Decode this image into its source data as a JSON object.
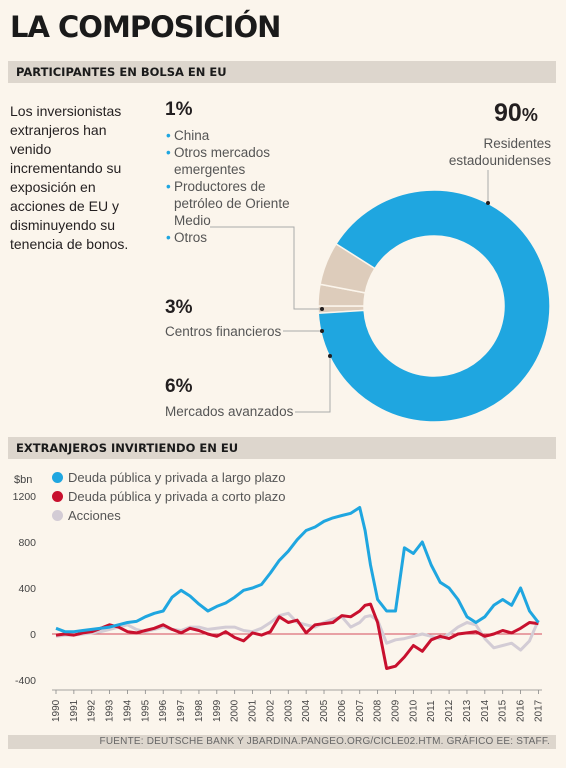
{
  "title": "LA COMPOSICIÓN",
  "section1": "PARTICIPANTES EN BOLSA EN EU",
  "section2": "EXTRANJEROS INVIRTIENDO EN EU",
  "intro": "Los inversionistas extranjeros han venido incrementando su exposición en acciones de EU y disminuyendo su tenencia de bonos.",
  "donut": {
    "p1": "1%",
    "p1_items": [
      "China",
      "Otros mercados emergentes",
      "Productores de petróleo de Oriente Medio",
      "Otros"
    ],
    "p90": "90",
    "p90_sign": "%",
    "p90_label": "Residentes estadounidenses",
    "p3": "3%",
    "p3_label": "Centros financieros",
    "p6": "6%",
    "p6_label": "Mercados avanzados"
  },
  "legend": {
    "unit": "$bn",
    "series": [
      "Deuda pública y privada a largo plazo",
      "Deuda pública y privada a corto plazo",
      "Acciones"
    ]
  },
  "colors": {
    "blue": "#1fa6e0",
    "red": "#c8102e",
    "grey": "#d3ccd5",
    "tan": "#ddccbb"
  },
  "footer": "FUENTE: DEUTSCHE BANK Y JBARDINA.PANGEO.ORG/CICLE02.HTM. GRÁFICO EE: STAFF.",
  "chart_data": [
    {
      "type": "pie",
      "labels": [
        "Residentes estadounidenses",
        "Mercados avanzados",
        "Centros financieros",
        "China / Otros mercados emergentes / Productores de petróleo de Oriente Medio / Otros"
      ],
      "values": [
        90,
        6,
        3,
        1
      ]
    },
    {
      "type": "line",
      "ylabel": "$bn",
      "ylim": [
        -400,
        1200
      ],
      "yticks": [
        1200,
        800,
        400,
        0,
        -400
      ],
      "xticks": [
        "1990",
        "1991",
        "1992",
        "1993",
        "1994",
        "1995",
        "1996",
        "1997",
        "1998",
        "1999",
        "2000",
        "2001",
        "2002",
        "2003",
        "2004",
        "2005",
        "2006",
        "2007",
        "2008",
        "2009",
        "2010",
        "2011",
        "2012",
        "2013",
        "2014",
        "2015",
        "2016",
        "2017"
      ],
      "x": [
        1990,
        1990.5,
        1991,
        1991.5,
        1992,
        1992.5,
        1993,
        1993.5,
        1994,
        1994.5,
        1995,
        1995.5,
        1996,
        1996.5,
        1997,
        1997.5,
        1998,
        1998.5,
        1999,
        1999.5,
        2000,
        2000.5,
        2001,
        2001.5,
        2002,
        2002.5,
        2003,
        2003.5,
        2004,
        2004.5,
        2005,
        2005.5,
        2006,
        2006.5,
        2007,
        2007.3,
        2007.6,
        2008,
        2008.5,
        2009,
        2009.5,
        2010,
        2010.5,
        2011,
        2011.5,
        2012,
        2012.5,
        2013,
        2013.5,
        2014,
        2014.5,
        2015,
        2015.5,
        2016,
        2016.5,
        2017
      ],
      "series": [
        {
          "name": "Deuda pública y privada a largo plazo",
          "values": [
            50,
            20,
            20,
            30,
            40,
            50,
            60,
            80,
            100,
            110,
            150,
            180,
            200,
            320,
            380,
            330,
            260,
            200,
            240,
            270,
            320,
            380,
            400,
            430,
            530,
            640,
            720,
            820,
            900,
            930,
            980,
            1010,
            1030,
            1050,
            1100,
            900,
            600,
            300,
            200,
            200,
            750,
            700,
            800,
            600,
            450,
            400,
            300,
            150,
            100,
            150,
            250,
            300,
            250,
            400,
            200,
            100
          ]
        },
        {
          "name": "Deuda pública y privada a corto plazo",
          "values": [
            -10,
            0,
            -10,
            10,
            20,
            50,
            80,
            60,
            20,
            10,
            30,
            50,
            80,
            40,
            10,
            50,
            30,
            0,
            -20,
            20,
            -30,
            -60,
            10,
            -10,
            20,
            150,
            100,
            120,
            10,
            80,
            90,
            100,
            160,
            150,
            200,
            250,
            260,
            100,
            -300,
            -280,
            -200,
            -100,
            -150,
            -50,
            -20,
            -40,
            0,
            10,
            20,
            -20,
            0,
            30,
            10,
            50,
            100,
            90
          ]
        },
        {
          "name": "Acciones",
          "values": [
            -20,
            -10,
            -10,
            0,
            10,
            20,
            40,
            60,
            80,
            40,
            20,
            40,
            60,
            40,
            30,
            60,
            60,
            40,
            50,
            60,
            60,
            30,
            20,
            50,
            100,
            160,
            180,
            100,
            80,
            60,
            100,
            130,
            150,
            60,
            100,
            150,
            160,
            120,
            -80,
            -50,
            -40,
            -20,
            0,
            -20,
            -40,
            0,
            60,
            100,
            80,
            -40,
            -120,
            -100,
            -80,
            -140,
            -60,
            120
          ]
        }
      ]
    }
  ]
}
